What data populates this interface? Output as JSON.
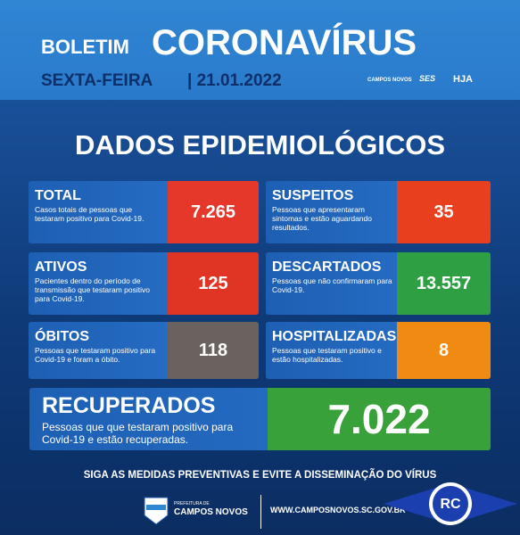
{
  "header": {
    "prefix": "BOLETIM",
    "title": "CORONAVÍRUS",
    "day": "SEXTA-FEIRA",
    "date": "| 21.01.2022",
    "logos": [
      "CAMPOS NOVOS",
      "SES",
      "HJA"
    ]
  },
  "section_title": "DADOS EPIDEMIOLÓGICOS",
  "cards": [
    {
      "label": "TOTAL",
      "description": "Casos totais de pessoas que testaram positivo para Covid-19.",
      "value": "7.265"
    },
    {
      "label": "SUSPEITOS",
      "description": "Pessoas que apresentaram sintomas e estão aguardando resultados.",
      "value": "35"
    },
    {
      "label": "ATIVOS",
      "description": "Pacientes dentro do período de transmissão que testaram positivo para Covid-19.",
      "value": "125"
    },
    {
      "label": "DESCARTADOS",
      "description": "Pessoas que não confirmaram para Covid-19.",
      "value": "13.557"
    },
    {
      "label": "ÓBITOS",
      "description": "Pessoas que testaram positivo para Covid-19 e foram a óbito.",
      "value": "118"
    },
    {
      "label": "HOSPITALIZADAS",
      "description": "Pessoas que testaram positivo e estão hospitalizadas.",
      "value": "8"
    }
  ],
  "recovered": {
    "label": "RECUPERADOS",
    "description": "Pessoas que que testaram positivo para Covid-19 e estão recuperadas.",
    "value": "7.022"
  },
  "footer": {
    "message": "SIGA AS MEDIDAS PREVENTIVAS E EVITE A DISSEMINAÇÃO DO VÍRUS",
    "logo_small": "PREFEITURA DE",
    "logo": "CAMPOS NOVOS",
    "website": "WWW.CAMPOSNOVOS.SC.GOV.BR",
    "badge": "RC"
  }
}
